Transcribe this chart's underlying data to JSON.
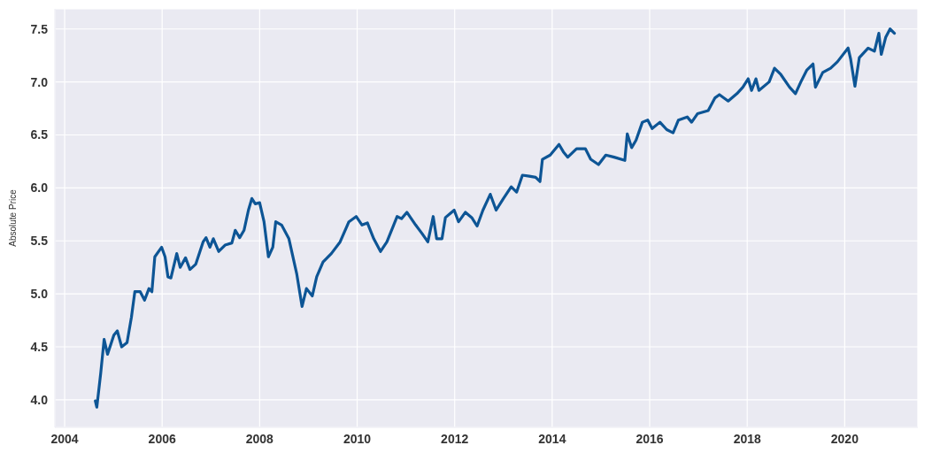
{
  "chart_data": {
    "type": "line",
    "ylabel": "Absolute Price",
    "x": [
      2004.63,
      2004.66,
      2004.74,
      2004.81,
      2004.88,
      2005.01,
      2005.08,
      2005.17,
      2005.28,
      2005.37,
      2005.44,
      2005.55,
      2005.64,
      2005.73,
      2005.79,
      2005.85,
      2005.99,
      2006.06,
      2006.12,
      2006.18,
      2006.3,
      2006.37,
      2006.48,
      2006.57,
      2006.69,
      2006.84,
      2006.9,
      2006.98,
      2007.05,
      2007.16,
      2007.29,
      2007.43,
      2007.5,
      2007.59,
      2007.68,
      2007.77,
      2007.84,
      2007.91,
      2008.0,
      2008.09,
      2008.18,
      2008.27,
      2008.33,
      2008.45,
      2008.6,
      2008.76,
      2008.87,
      2008.96,
      2009.08,
      2009.17,
      2009.3,
      2009.47,
      2009.65,
      2009.83,
      2009.98,
      2010.1,
      2010.21,
      2010.34,
      2010.48,
      2010.61,
      2010.82,
      2010.91,
      2011.02,
      2011.2,
      2011.33,
      2011.45,
      2011.56,
      2011.63,
      2011.74,
      2011.81,
      2011.99,
      2012.08,
      2012.22,
      2012.35,
      2012.46,
      2012.58,
      2012.73,
      2012.85,
      2013.0,
      2013.16,
      2013.27,
      2013.39,
      2013.53,
      2013.66,
      2013.75,
      2013.8,
      2013.96,
      2014.14,
      2014.23,
      2014.32,
      2014.5,
      2014.68,
      2014.79,
      2014.95,
      2015.1,
      2015.27,
      2015.49,
      2015.54,
      2015.63,
      2015.72,
      2015.85,
      2015.96,
      2016.05,
      2016.21,
      2016.35,
      2016.48,
      2016.59,
      2016.77,
      2016.86,
      2016.98,
      2017.2,
      2017.34,
      2017.43,
      2017.61,
      2017.79,
      2017.91,
      2018.02,
      2018.09,
      2018.18,
      2018.24,
      2018.45,
      2018.56,
      2018.69,
      2018.87,
      2018.99,
      2019.1,
      2019.22,
      2019.35,
      2019.4,
      2019.55,
      2019.71,
      2019.85,
      2020.07,
      2020.12,
      2020.21,
      2020.3,
      2020.48,
      2020.61,
      2020.7,
      2020.75,
      2020.84,
      2020.93,
      2021.02
    ],
    "series": [
      {
        "color": "#0d5595",
        "values": [
          3.99,
          3.93,
          4.25,
          4.57,
          4.43,
          4.61,
          4.65,
          4.5,
          4.54,
          4.78,
          5.02,
          5.02,
          4.94,
          5.05,
          5.02,
          5.35,
          5.44,
          5.35,
          5.16,
          5.15,
          5.38,
          5.25,
          5.34,
          5.23,
          5.28,
          5.49,
          5.53,
          5.44,
          5.52,
          5.4,
          5.46,
          5.48,
          5.6,
          5.53,
          5.6,
          5.79,
          5.9,
          5.85,
          5.86,
          5.68,
          5.35,
          5.44,
          5.68,
          5.65,
          5.52,
          5.19,
          4.88,
          5.05,
          4.98,
          5.16,
          5.3,
          5.38,
          5.49,
          5.68,
          5.73,
          5.65,
          5.67,
          5.52,
          5.4,
          5.49,
          5.73,
          5.71,
          5.77,
          5.65,
          5.57,
          5.49,
          5.73,
          5.52,
          5.52,
          5.72,
          5.79,
          5.68,
          5.77,
          5.72,
          5.64,
          5.79,
          5.94,
          5.79,
          5.9,
          6.01,
          5.96,
          6.12,
          6.11,
          6.1,
          6.06,
          6.27,
          6.31,
          6.41,
          6.34,
          6.29,
          6.37,
          6.37,
          6.27,
          6.22,
          6.31,
          6.29,
          6.26,
          6.51,
          6.38,
          6.45,
          6.62,
          6.64,
          6.56,
          6.62,
          6.55,
          6.52,
          6.64,
          6.67,
          6.62,
          6.7,
          6.73,
          6.85,
          6.88,
          6.82,
          6.89,
          6.95,
          7.03,
          6.92,
          7.03,
          6.92,
          7.0,
          7.13,
          7.07,
          6.95,
          6.89,
          7.0,
          7.11,
          7.17,
          6.95,
          7.09,
          7.13,
          7.19,
          7.32,
          7.22,
          6.96,
          7.23,
          7.32,
          7.29,
          7.46,
          7.26,
          7.42,
          7.5,
          7.46
        ]
      }
    ],
    "xlim": [
      2003.8,
      2021.5
    ],
    "xticks": [
      2004,
      2006,
      2008,
      2010,
      2012,
      2014,
      2016,
      2018,
      2020
    ],
    "ylim": [
      3.74,
      7.69
    ],
    "yticks": [
      {
        "value": 4,
        "label": "4.0"
      },
      4.5,
      {
        "value": 5,
        "label": "5.0"
      },
      5.5,
      {
        "value": 6,
        "label": "6.0"
      },
      6.5,
      {
        "value": 7,
        "label": "7.0"
      },
      7.5
    ],
    "grid": true
  }
}
